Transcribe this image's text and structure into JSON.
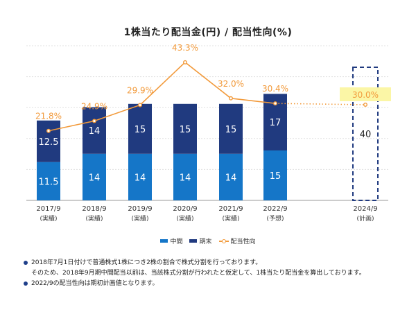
{
  "chart_data": {
    "type": "bar",
    "title": "1株当たり配当金(円) / 配当性向(%)",
    "categories": [
      [
        "2017/9",
        "(実績)"
      ],
      [
        "2018/9",
        "(実績)"
      ],
      [
        "2019/9",
        "(実績)"
      ],
      [
        "2020/9",
        "(実績)"
      ],
      [
        "2021/9",
        "(実績)"
      ],
      [
        "2022/9",
        "(予想)"
      ],
      [
        "2024/9",
        "(計画)"
      ]
    ],
    "stacked": true,
    "ylim": [
      0,
      35
    ],
    "grid": true,
    "series": [
      {
        "name": "中間",
        "values": [
          11.5,
          14,
          14,
          14,
          14,
          15,
          null
        ],
        "labels": [
          "11.5",
          "14",
          "14",
          "14",
          "14",
          "15",
          ""
        ],
        "color": "#1576c8"
      },
      {
        "name": "期末",
        "values": [
          12.5,
          14,
          15,
          15,
          15,
          17,
          null
        ],
        "labels": [
          "12.5",
          "14",
          "15",
          "15",
          "15",
          "17",
          ""
        ],
        "color": "#203a7f"
      }
    ],
    "plan": {
      "category_index": 6,
      "total": 40,
      "label": "40",
      "style": "dashed-outline"
    },
    "payout_ratio": {
      "name": "配当性向",
      "values": [
        21.8,
        24.9,
        29.9,
        43.3,
        32.0,
        30.4,
        30.0
      ],
      "labels": [
        "21.8%",
        "24.9%",
        "29.9%",
        "43.3%",
        "32.0%",
        "30.4%",
        "30.0%"
      ],
      "ylim": [
        0,
        50
      ],
      "color": "#f29a3b",
      "dotted_from_index": 5,
      "highlight_index": 6,
      "highlight_color": "#fbf6a6"
    },
    "legend_position": "bottom"
  },
  "notes": [
    "2018年7月1日付けで普通株式1株につき2株の割合で株式分割を行っております。",
    "そのため、2018年9月期中間配当以前は、当該株式分割が行われたと仮定して、1株当たり配当金を算出しております。",
    "2022/9の配当性向は期初計画値となります。"
  ]
}
